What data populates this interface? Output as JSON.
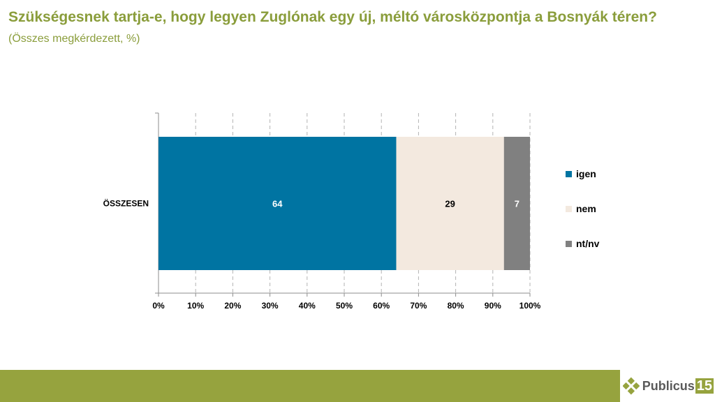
{
  "title": {
    "main": "Szükségesnek tartja-e, hogy legyen Zuglónak egy új, méltó városközpontja a Bosnyák téren?",
    "sub": "(Összes megkérdezett, %)"
  },
  "chart_data": {
    "type": "bar",
    "orientation": "horizontal",
    "stacked": true,
    "categories": [
      "ÖSSZESEN"
    ],
    "series": [
      {
        "name": "igen",
        "values": [
          64
        ],
        "color": "#0074a2",
        "label_color": "#ffffff"
      },
      {
        "name": "nem",
        "values": [
          29
        ],
        "color": "#f3e9df",
        "label_color": "#000000"
      },
      {
        "name": "nt/nv",
        "values": [
          7
        ],
        "color": "#808080",
        "label_color": "#ffffff"
      }
    ],
    "xlim": [
      0,
      100
    ],
    "xticks": [
      "0%",
      "10%",
      "20%",
      "30%",
      "40%",
      "50%",
      "60%",
      "70%",
      "80%",
      "90%",
      "100%"
    ],
    "grid": "vertical-dashed",
    "legend_position": "right"
  },
  "logo": {
    "text": "Publicus",
    "number": "15",
    "icon": "diamond-cluster-icon",
    "accent": "#96a33e"
  }
}
